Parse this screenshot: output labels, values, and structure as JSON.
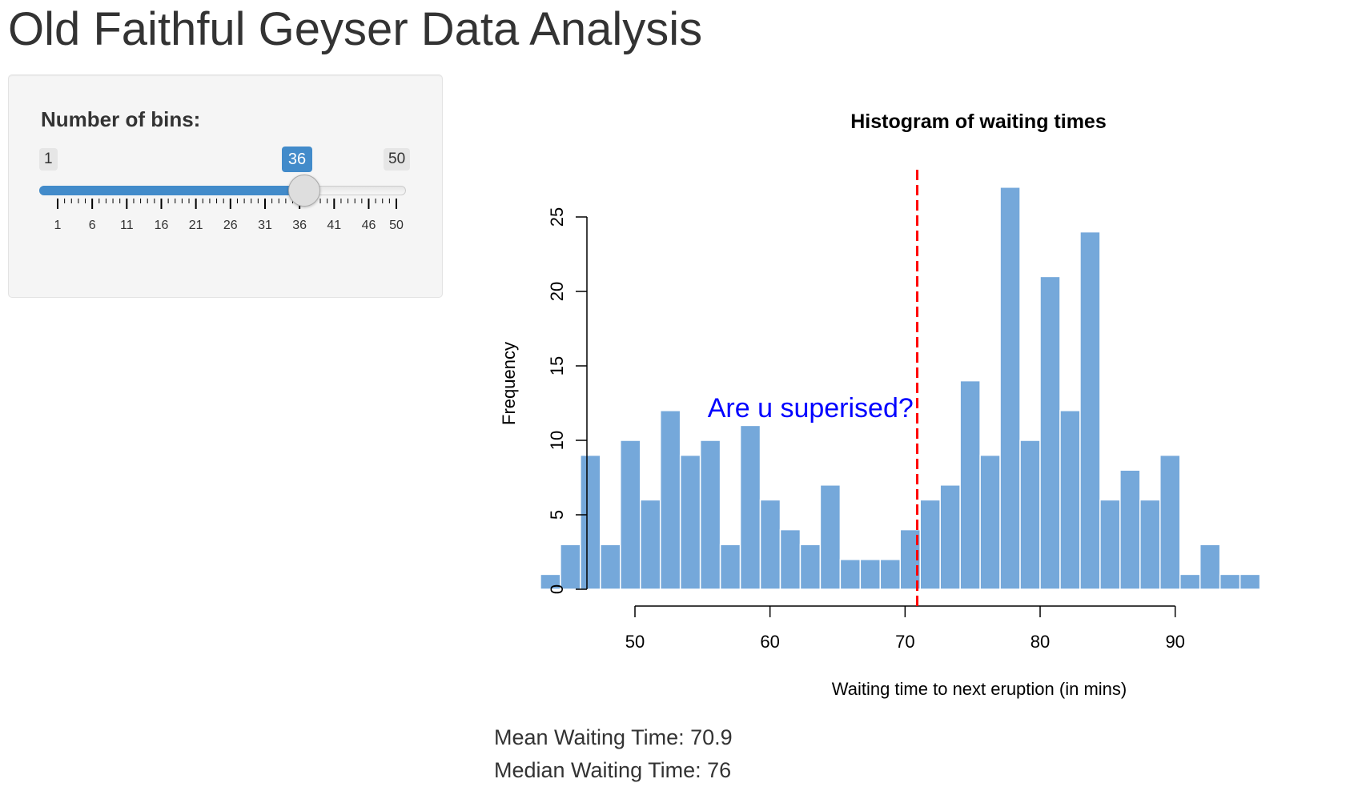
{
  "app": {
    "title": "Old Faithful Geyser Data Analysis"
  },
  "sidebar": {
    "slider": {
      "label": "Number of bins:",
      "min_label": "1",
      "max_label": "50",
      "min": 1,
      "max": 50,
      "value": 36,
      "value_label": "36",
      "tick_labels": [
        "1",
        "6",
        "11",
        "16",
        "21",
        "26",
        "31",
        "36",
        "41",
        "46",
        "50"
      ],
      "accent_color": "#428bca"
    }
  },
  "chart_data": {
    "type": "bar",
    "title": "Histogram of waiting times",
    "xlabel": "Waiting time to next eruption (in mins)",
    "ylabel": "Frequency",
    "bin_start": 43,
    "bin_width": 1.48,
    "values": [
      1,
      3,
      9,
      3,
      10,
      6,
      12,
      9,
      10,
      3,
      11,
      6,
      4,
      3,
      7,
      2,
      2,
      2,
      4,
      6,
      7,
      14,
      9,
      27,
      10,
      21,
      12,
      24,
      6,
      8,
      6,
      9,
      1,
      3,
      1,
      1
    ],
    "x_ticks": [
      50,
      60,
      70,
      80,
      90
    ],
    "y_ticks": [
      0,
      5,
      10,
      15,
      20,
      25
    ],
    "xlim": [
      43,
      96
    ],
    "ylim": [
      0,
      27
    ],
    "bar_color": "#75a8da",
    "mean_line": {
      "x": 70.9,
      "color": "#ff0000"
    },
    "annotation": {
      "text": "Are u superised?",
      "x": 63,
      "y": 12,
      "color": "#0000ff"
    }
  },
  "stats": {
    "mean_text": "Mean Waiting Time: 70.9",
    "median_text": "Median Waiting Time: 76"
  }
}
